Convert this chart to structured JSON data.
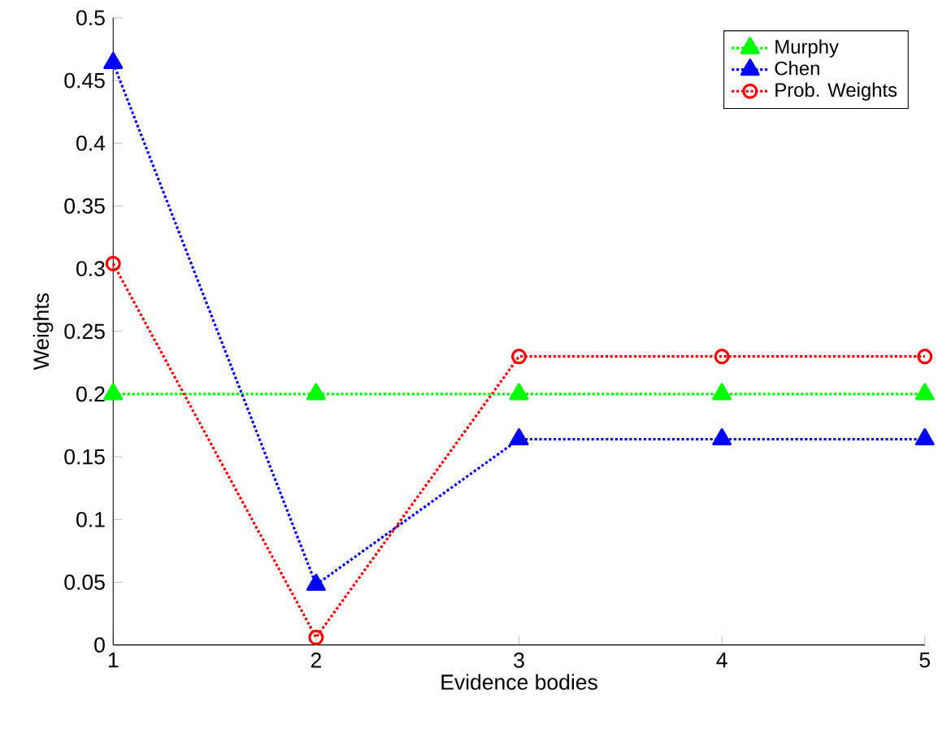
{
  "chart_data": {
    "type": "line",
    "xlabel": "Evidence bodies",
    "ylabel": "Weights",
    "x": [
      1,
      2,
      3,
      4,
      5
    ],
    "xlim": [
      1,
      5
    ],
    "xticks": [
      1,
      2,
      3,
      4,
      5
    ],
    "ylim": [
      0,
      0.5
    ],
    "yticks": [
      0,
      0.05,
      0.1,
      0.15,
      0.2,
      0.25,
      0.3,
      0.35,
      0.4,
      0.45,
      0.5
    ],
    "line_style": "dotted",
    "legend": "top right",
    "grid": false,
    "series": [
      {
        "name": "Murphy",
        "color": "#00ff00",
        "marker": "triangle",
        "values": [
          0.2,
          0.2,
          0.2,
          0.2,
          0.2
        ]
      },
      {
        "name": "Chen",
        "color": "#0000ff",
        "marker": "triangle",
        "values": [
          0.464,
          0.048,
          0.164,
          0.164,
          0.164
        ]
      },
      {
        "name": "Prob. Weights",
        "color": "#ff0000",
        "marker": "circle",
        "values": [
          0.304,
          0.006,
          0.23,
          0.23,
          0.23
        ]
      }
    ]
  }
}
